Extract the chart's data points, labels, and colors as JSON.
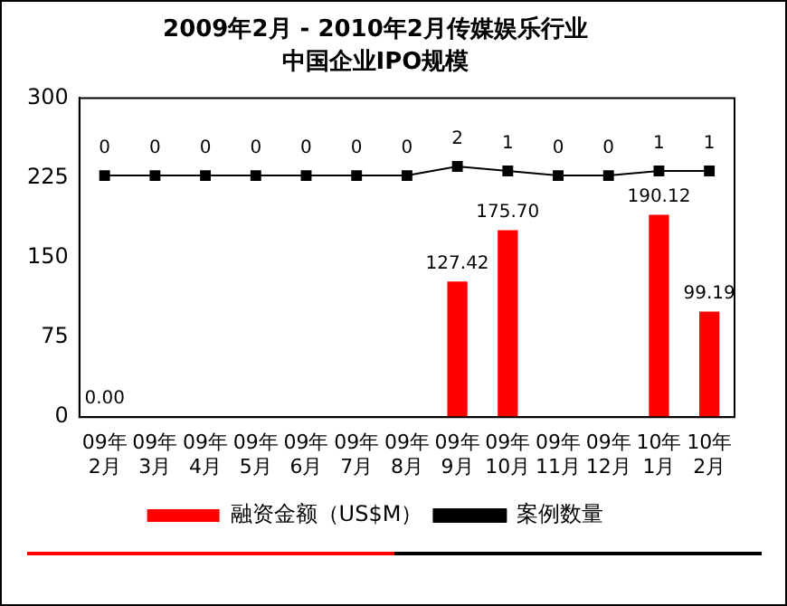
{
  "chart_data": {
    "type": "bar",
    "title": "2009年2月 - 2010年2月传媒娱乐行业",
    "subtitle": "中国企业IPO规模",
    "categories": [
      "09年\n2月",
      "09年\n3月",
      "09年\n4月",
      "09年\n5月",
      "09年\n6月",
      "09年\n7月",
      "09年\n8月",
      "09年\n9月",
      "09年\n10月",
      "09年\n11月",
      "09年\n12月",
      "10年\n1月",
      "10年\n2月"
    ],
    "series": [
      {
        "name": "融资金额（US$M）",
        "color": "#ff0000",
        "values": [
          0,
          null,
          null,
          null,
          null,
          null,
          null,
          127.42,
          175.7,
          null,
          null,
          190.12,
          99.19
        ],
        "value_labels": [
          "0.00",
          null,
          null,
          null,
          null,
          null,
          null,
          "127.42",
          "175.70",
          null,
          null,
          "190.12",
          "99.19"
        ]
      },
      {
        "name": "案例数量",
        "type": "line",
        "axis": "y2",
        "color": "#000000",
        "values": [
          0,
          0,
          0,
          0,
          0,
          0,
          0,
          2,
          1,
          0,
          0,
          1,
          1
        ],
        "value_labels": [
          "0",
          "0",
          "0",
          "0",
          "0",
          "0",
          "0",
          "2",
          "1",
          "0",
          "0",
          "1",
          "1"
        ]
      }
    ],
    "ylim": [
      0,
      300
    ],
    "yticks": [
      0,
      75,
      150,
      225,
      300
    ],
    "y2lim": [
      -53,
      17
    ],
    "grid": false,
    "legend": "bottom",
    "marker": "square",
    "line_style": "solid"
  }
}
